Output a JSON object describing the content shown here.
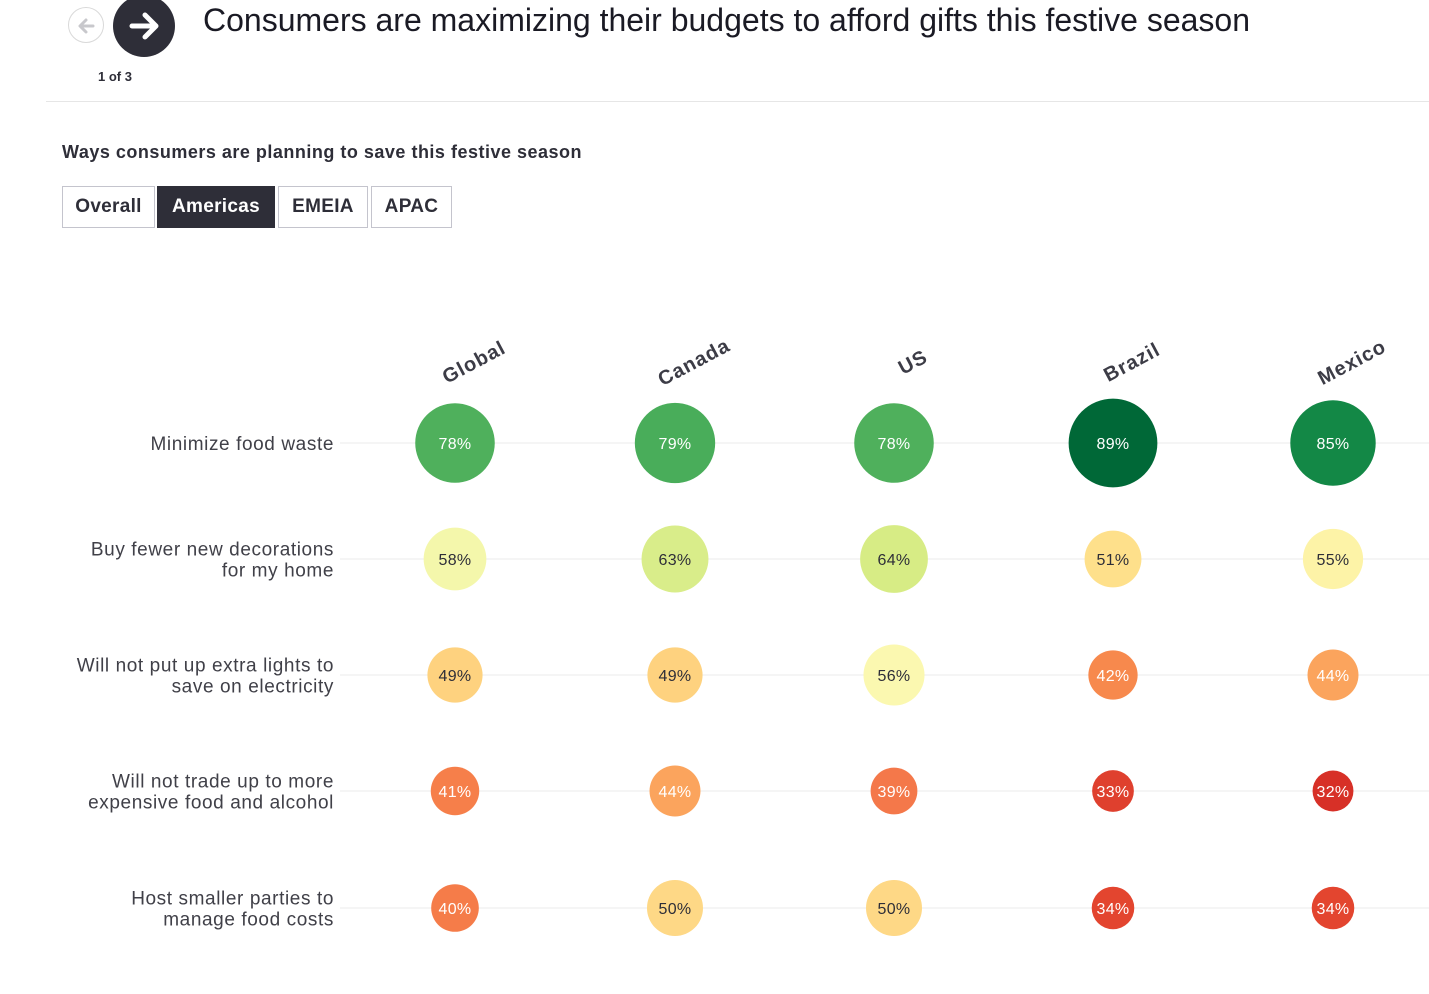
{
  "header": {
    "pager": "1 of 3",
    "title": "Consumers are maximizing their budgets to afford gifts this festive season",
    "prev_icon": "arrow-left-icon",
    "next_icon": "arrow-right-icon"
  },
  "subtitle": "Ways consumers are planning to save this festive season",
  "tabs": [
    {
      "label": "Overall",
      "active": false
    },
    {
      "label": "Americas",
      "active": true
    },
    {
      "label": "EMEIA",
      "active": false
    },
    {
      "label": "APAC",
      "active": false
    }
  ],
  "chart_data": {
    "type": "heatmap",
    "columns": [
      "Global",
      "Canada",
      "US",
      "Brazil",
      "Mexico"
    ],
    "rows": [
      {
        "label": [
          "Minimize food waste"
        ],
        "values": [
          78,
          79,
          78,
          89,
          85
        ]
      },
      {
        "label": [
          "Buy fewer new decorations",
          "for my home"
        ],
        "values": [
          58,
          63,
          64,
          51,
          55
        ]
      },
      {
        "label": [
          "Will not put up extra lights to",
          "save on electricity"
        ],
        "values": [
          49,
          49,
          56,
          42,
          44
        ]
      },
      {
        "label": [
          "Will not trade up to more",
          "expensive food and alcohol"
        ],
        "values": [
          41,
          44,
          39,
          33,
          32
        ]
      },
      {
        "label": [
          "Host smaller parties to",
          "manage food costs"
        ],
        "values": [
          40,
          50,
          50,
          34,
          34
        ]
      }
    ],
    "unit": "%",
    "colors": {
      "89": "#006837",
      "85": "#138846",
      "79": "#49ad5a",
      "78": "#4fb05c",
      "64": "#d7ec85",
      "63": "#d9ed8a",
      "58": "#f4f7ab",
      "56": "#fbf8b0",
      "55": "#fdf3a7",
      "51": "#fee08b",
      "50": "#fed886",
      "49": "#fed27f",
      "44": "#fba45d",
      "42": "#f7894d",
      "41": "#f67f4a",
      "40": "#f57c49",
      "39": "#f4784a",
      "34": "#e3452f",
      "33": "#df402e",
      "32": "#d73027"
    }
  }
}
